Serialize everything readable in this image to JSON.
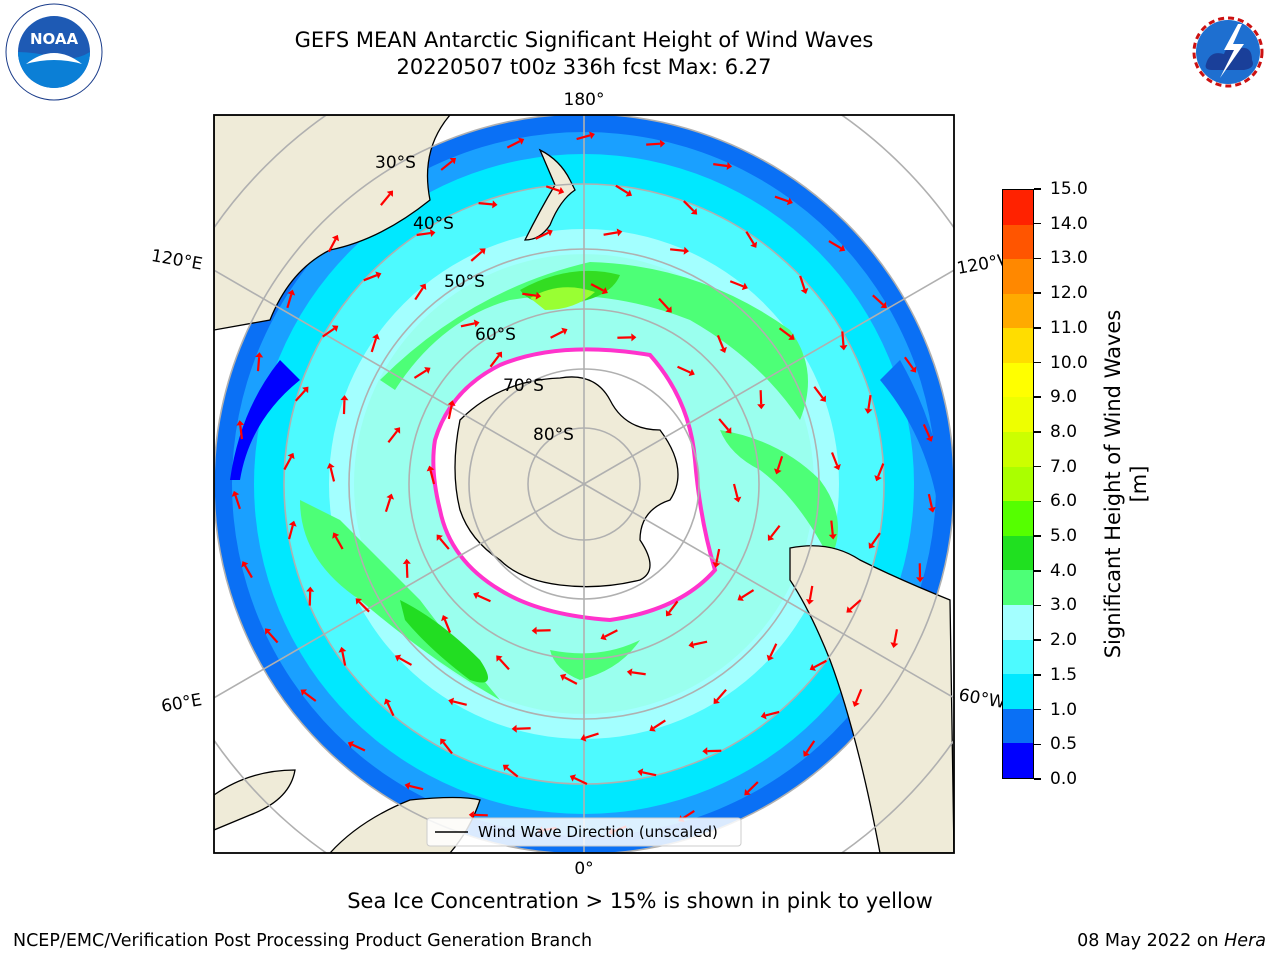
{
  "header": {
    "title_line1": "GEFS MEAN Antarctic Significant Height of Wind Waves",
    "title_line2": "20220507 t00z 336h fcst   Max: 6.27"
  },
  "logos": {
    "left": {
      "name": "NOAA",
      "text": "NOAA",
      "ring_text": "NATIONAL OCEANIC AND ATMOSPHERIC ADMINISTRATION · U.S. DEPARTMENT OF COMMERCE"
    },
    "right": {
      "name": "National Weather Service",
      "ring_text": "NATIONAL WEATHER SERVICE"
    }
  },
  "map": {
    "projection": "south-polar-stereographic",
    "lon_labels": {
      "top": "180°",
      "bottom": "0°",
      "left_upper": "120°E",
      "left_lower": "60°E",
      "right_upper": "120°W",
      "right_lower": "60°W"
    },
    "lat_labels": [
      "30°S",
      "40°S",
      "50°S",
      "60°S",
      "70°S",
      "80°S"
    ],
    "legend_label": "Wind Wave Direction (unscaled)",
    "colors": {
      "land": "#efebd8",
      "ice_edge": "#ff33cc",
      "arrow": "#ff0000",
      "grid": "#b0b0b0"
    }
  },
  "colorbar": {
    "label": "Significant Height of Wind Waves [m]",
    "ticks": [
      "0.0",
      "0.5",
      "1.0",
      "1.5",
      "2.0",
      "3.0",
      "4.0",
      "5.0",
      "6.0",
      "7.0",
      "8.0",
      "9.0",
      "10.0",
      "11.0",
      "12.0",
      "13.0",
      "14.0",
      "15.0"
    ],
    "colors": [
      "#0000ff",
      "#0a70f5",
      "#00e8ff",
      "#4dfaff",
      "#a3ffff",
      "#4dff77",
      "#20e020",
      "#55ff00",
      "#aaff00",
      "#ccff00",
      "#eeff00",
      "#ffff00",
      "#ffdd00",
      "#ffaa00",
      "#ff8800",
      "#ff5500",
      "#ff2200"
    ]
  },
  "notes": {
    "sea_ice": "Sea Ice Concentration > 15% is shown in pink to yellow",
    "credit": "NCEP/EMC/Verification Post Processing Product Generation Branch",
    "date": "08 May 2022 on ",
    "machine": "Hera"
  }
}
